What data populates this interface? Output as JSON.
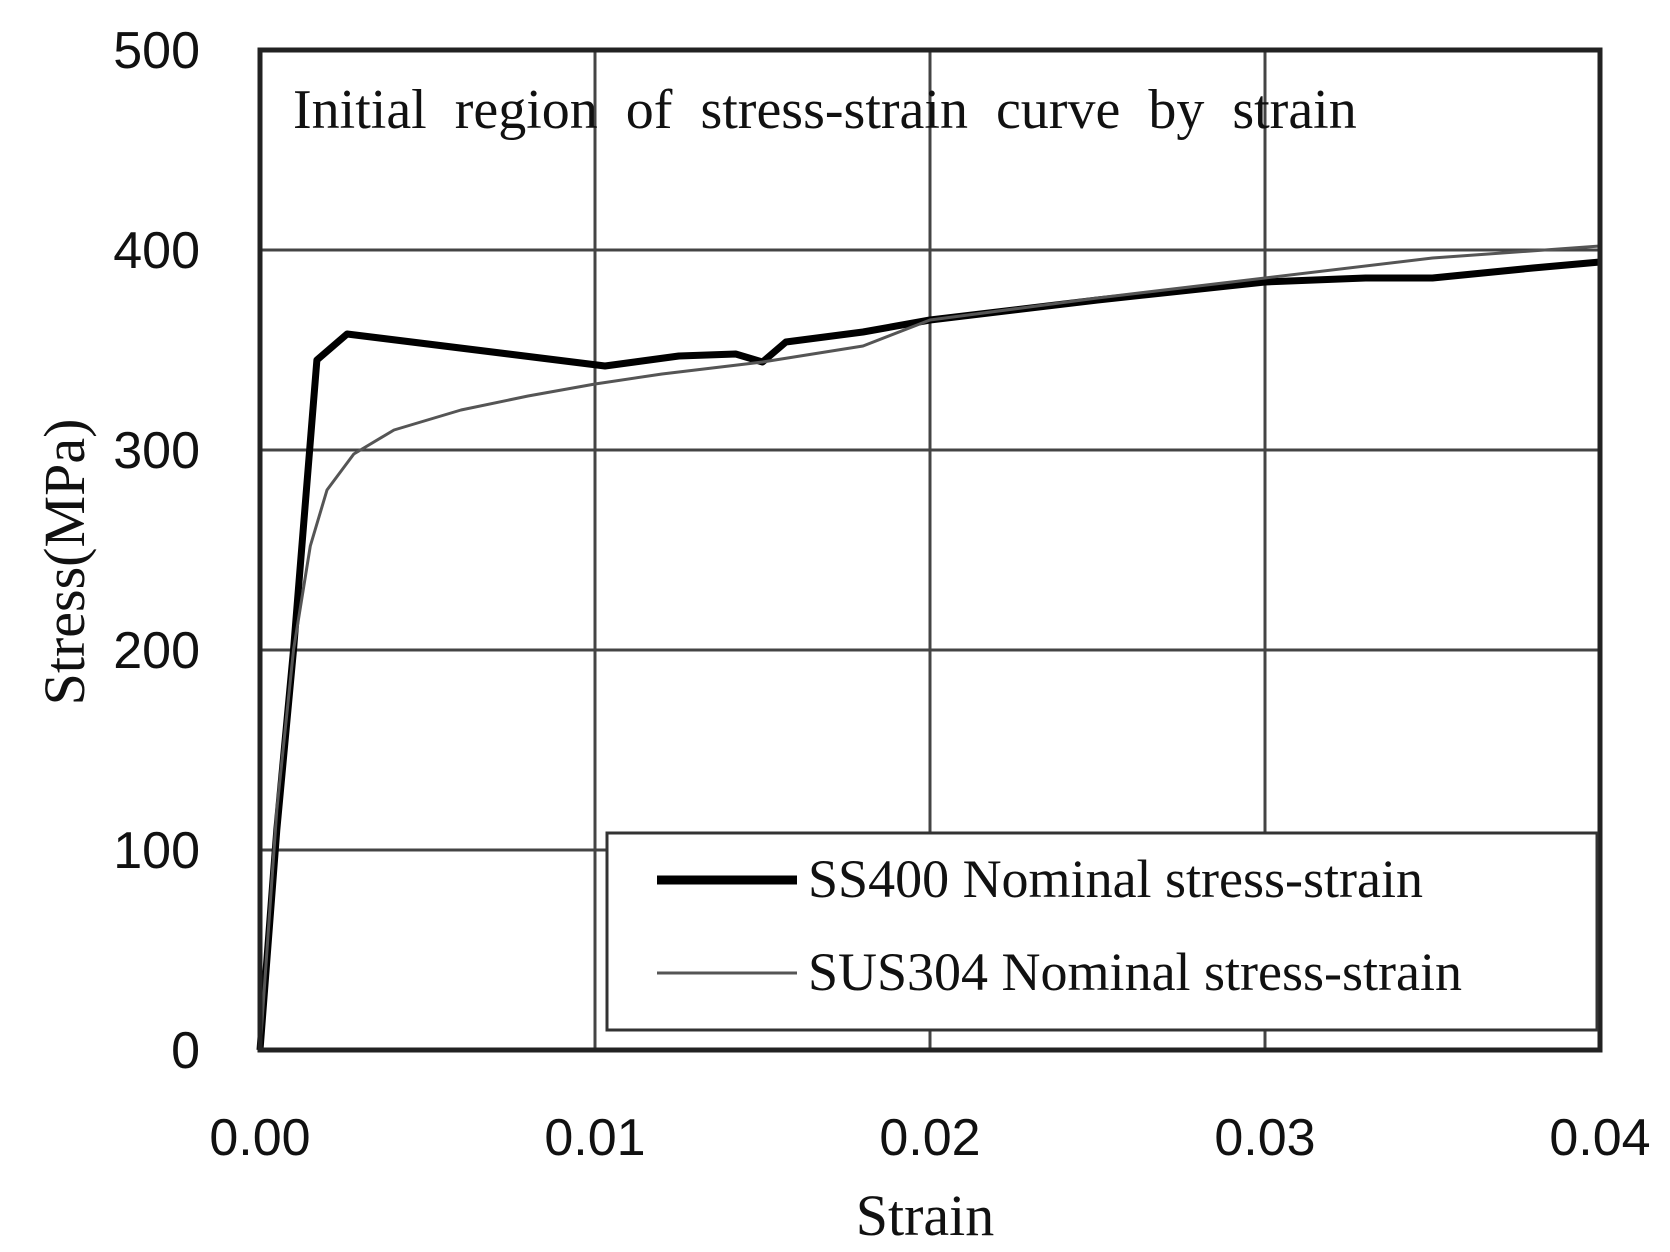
{
  "chart_data": {
    "type": "line",
    "title": "Initial  region  of  stress-strain  curve  by  strain",
    "xlabel": "Strain",
    "ylabel": "Stress(MPa)",
    "xlim": [
      0,
      0.04
    ],
    "ylim": [
      0,
      500
    ],
    "x_ticks": [
      0,
      0.01,
      0.02,
      0.03,
      0.04
    ],
    "x_tick_labels": [
      "0.00",
      "0.01",
      "0.02",
      "0.03",
      "0.04"
    ],
    "y_ticks": [
      0,
      100,
      200,
      300,
      400,
      500
    ],
    "y_tick_labels": [
      "0",
      "100",
      "200",
      "300",
      "400",
      "500"
    ],
    "grid": true,
    "legend_position": "bottom-right",
    "series": [
      {
        "name": "SS400 Nominal stress-strain",
        "style": "thick",
        "color": "#000000",
        "x": [
          0,
          0.0005,
          0.001,
          0.0017,
          0.0026,
          0.0103,
          0.0125,
          0.0142,
          0.015,
          0.0157,
          0.018,
          0.02,
          0.025,
          0.03,
          0.033,
          0.035,
          0.038,
          0.04
        ],
        "y": [
          0,
          110,
          200,
          345,
          358,
          342,
          347,
          348,
          344,
          354,
          359,
          365,
          375,
          384,
          386,
          386,
          391,
          394
        ]
      },
      {
        "name": "SUS304 Nominal stress-strain",
        "style": "thin",
        "color": "#555555",
        "x": [
          0,
          0.0005,
          0.001,
          0.0015,
          0.002,
          0.0028,
          0.004,
          0.006,
          0.008,
          0.01,
          0.012,
          0.015,
          0.018,
          0.02,
          0.025,
          0.03,
          0.035,
          0.04
        ],
        "y": [
          0,
          120,
          200,
          252,
          280,
          298,
          310,
          320,
          327,
          333,
          338,
          344,
          352,
          365,
          376,
          386,
          396,
          402
        ]
      }
    ]
  }
}
